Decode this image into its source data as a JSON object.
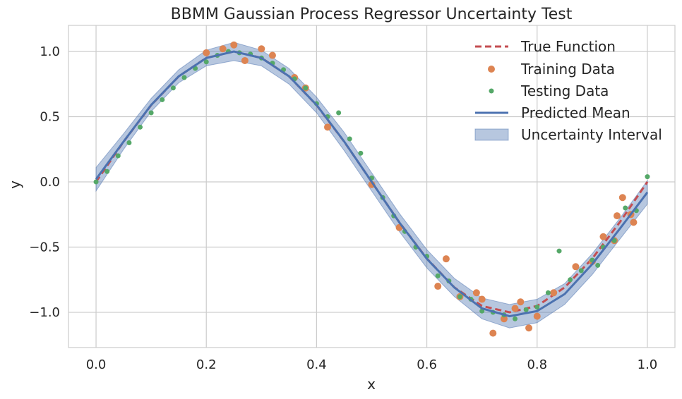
{
  "chart_data": {
    "type": "line",
    "title": "BBMM Gaussian Process Regressor Uncertainty Test",
    "xlabel": "x",
    "ylabel": "y",
    "xlim": [
      -0.05,
      1.05
    ],
    "ylim": [
      -1.27,
      1.2
    ],
    "x_ticks": [
      0.0,
      0.2,
      0.4,
      0.6,
      0.8,
      1.0
    ],
    "x_tick_labels": [
      "0.0",
      "0.2",
      "0.4",
      "0.6",
      "0.8",
      "1.0"
    ],
    "y_ticks": [
      -1.0,
      -0.5,
      0.0,
      0.5,
      1.0
    ],
    "y_tick_labels": [
      "−1.0",
      "−0.5",
      "0.0",
      "0.5",
      "1.0"
    ],
    "grid": true,
    "legend_position": "top-right",
    "colors": {
      "true_function": "#c44e52",
      "training": "#dd8452",
      "testing": "#55a868",
      "mean": "#4c72b0",
      "band": "#4c72b0"
    },
    "series": [
      {
        "name": "True Function",
        "kind": "dashed-line",
        "x": [
          0.0,
          0.05,
          0.1,
          0.15,
          0.2,
          0.25,
          0.3,
          0.35,
          0.4,
          0.45,
          0.5,
          0.55,
          0.6,
          0.65,
          0.7,
          0.75,
          0.8,
          0.85,
          0.9,
          0.95,
          1.0
        ],
        "y": [
          0.0,
          0.309,
          0.588,
          0.809,
          0.951,
          1.0,
          0.951,
          0.809,
          0.588,
          0.309,
          0.0,
          -0.309,
          -0.588,
          -0.809,
          -0.951,
          -1.0,
          -0.951,
          -0.809,
          -0.588,
          -0.309,
          0.0
        ]
      },
      {
        "name": "Training Data",
        "kind": "scatter",
        "x": [
          0.2,
          0.23,
          0.25,
          0.27,
          0.3,
          0.32,
          0.36,
          0.38,
          0.42,
          0.5,
          0.55,
          0.62,
          0.635,
          0.66,
          0.69,
          0.7,
          0.72,
          0.74,
          0.76,
          0.77,
          0.785,
          0.8,
          0.83,
          0.87,
          0.9,
          0.92,
          0.94,
          0.945,
          0.955,
          0.97,
          0.975
        ],
        "y": [
          0.99,
          1.02,
          1.05,
          0.93,
          1.02,
          0.97,
          0.8,
          0.72,
          0.42,
          -0.02,
          -0.35,
          -0.8,
          -0.59,
          -0.88,
          -0.85,
          -0.9,
          -1.16,
          -1.05,
          -0.97,
          -0.92,
          -1.12,
          -1.03,
          -0.85,
          -0.65,
          -0.61,
          -0.42,
          -0.45,
          -0.26,
          -0.12,
          -0.25,
          -0.31
        ]
      },
      {
        "name": "Testing Data",
        "kind": "scatter",
        "x": [
          0.0,
          0.02,
          0.04,
          0.06,
          0.08,
          0.1,
          0.12,
          0.14,
          0.16,
          0.18,
          0.2,
          0.22,
          0.24,
          0.26,
          0.28,
          0.3,
          0.32,
          0.34,
          0.36,
          0.38,
          0.4,
          0.42,
          0.44,
          0.46,
          0.48,
          0.5,
          0.52,
          0.54,
          0.56,
          0.58,
          0.6,
          0.62,
          0.64,
          0.66,
          0.68,
          0.7,
          0.72,
          0.74,
          0.76,
          0.78,
          0.8,
          0.82,
          0.84,
          0.86,
          0.88,
          0.9,
          0.91,
          0.92,
          0.94,
          0.96,
          0.98,
          1.0
        ],
        "y": [
          0.0,
          0.08,
          0.2,
          0.3,
          0.42,
          0.53,
          0.63,
          0.72,
          0.8,
          0.87,
          0.92,
          0.97,
          1.0,
          0.99,
          0.98,
          0.95,
          0.91,
          0.86,
          0.79,
          0.72,
          0.6,
          0.5,
          0.53,
          0.33,
          0.22,
          0.03,
          -0.12,
          -0.26,
          -0.38,
          -0.5,
          -0.57,
          -0.72,
          -0.76,
          -0.88,
          -0.9,
          -0.99,
          -1.0,
          -1.02,
          -1.05,
          -0.98,
          -0.96,
          -0.85,
          -0.53,
          -0.75,
          -0.68,
          -0.6,
          -0.64,
          -0.5,
          -0.45,
          -0.2,
          -0.22,
          0.04
        ]
      },
      {
        "name": "Predicted Mean",
        "kind": "line",
        "x": [
          0.0,
          0.05,
          0.1,
          0.15,
          0.2,
          0.25,
          0.3,
          0.35,
          0.4,
          0.45,
          0.5,
          0.55,
          0.6,
          0.65,
          0.7,
          0.75,
          0.8,
          0.85,
          0.9,
          0.95,
          1.0
        ],
        "y": [
          0.02,
          0.31,
          0.59,
          0.81,
          0.95,
          1.0,
          0.95,
          0.81,
          0.59,
          0.31,
          0.0,
          -0.31,
          -0.59,
          -0.81,
          -0.97,
          -1.03,
          -0.99,
          -0.86,
          -0.63,
          -0.36,
          -0.08
        ]
      },
      {
        "name": "Uncertainty Interval",
        "kind": "band",
        "x": [
          0.0,
          0.05,
          0.1,
          0.15,
          0.2,
          0.25,
          0.3,
          0.35,
          0.4,
          0.45,
          0.5,
          0.55,
          0.6,
          0.65,
          0.7,
          0.75,
          0.8,
          0.85,
          0.9,
          0.95,
          1.0
        ],
        "lower": [
          -0.07,
          0.25,
          0.54,
          0.76,
          0.89,
          0.93,
          0.89,
          0.75,
          0.53,
          0.24,
          -0.07,
          -0.38,
          -0.66,
          -0.88,
          -1.05,
          -1.12,
          -1.08,
          -0.94,
          -0.71,
          -0.44,
          -0.17
        ],
        "upper": [
          0.11,
          0.37,
          0.64,
          0.86,
          1.01,
          1.07,
          1.01,
          0.87,
          0.65,
          0.38,
          0.07,
          -0.24,
          -0.52,
          -0.74,
          -0.89,
          -0.94,
          -0.9,
          -0.78,
          -0.55,
          -0.28,
          0.01
        ]
      }
    ]
  }
}
